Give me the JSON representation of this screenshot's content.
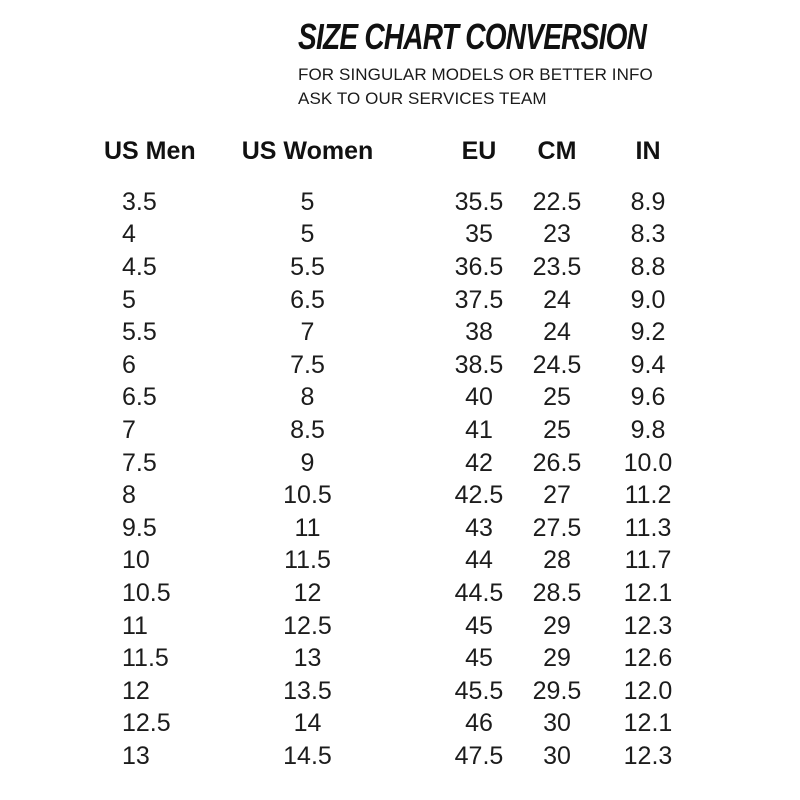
{
  "header": {
    "title": "SIZE CHART CONVERSION",
    "subtitle_line1": "FOR SINGULAR MODELS OR BETTER INFO",
    "subtitle_line2": "ASK TO OUR SERVICES TEAM"
  },
  "chart_data": {
    "type": "table",
    "title": "SIZE CHART CONVERSION",
    "columns": [
      "US Men",
      "US Women",
      "EU",
      "CM",
      "IN"
    ],
    "rows": [
      [
        "3.5",
        "5",
        "35.5",
        "22.5",
        "8.9"
      ],
      [
        "4",
        "5",
        "35",
        "23",
        "8.3"
      ],
      [
        "4.5",
        "5.5",
        "36.5",
        "23.5",
        "8.8"
      ],
      [
        "5",
        "6.5",
        "37.5",
        "24",
        "9.0"
      ],
      [
        "5.5",
        "7",
        "38",
        "24",
        "9.2"
      ],
      [
        "6",
        "7.5",
        "38.5",
        "24.5",
        "9.4"
      ],
      [
        "6.5",
        "8",
        "40",
        "25",
        "9.6"
      ],
      [
        "7",
        "8.5",
        "41",
        "25",
        "9.8"
      ],
      [
        "7.5",
        "9",
        "42",
        "26.5",
        "10.0"
      ],
      [
        "8",
        "10.5",
        "42.5",
        "27",
        "11.2"
      ],
      [
        "9.5",
        "11",
        "43",
        "27.5",
        "11.3"
      ],
      [
        "10",
        "11.5",
        "44",
        "28",
        "11.7"
      ],
      [
        "10.5",
        "12",
        "44.5",
        "28.5",
        "12.1"
      ],
      [
        "11",
        "12.5",
        "45",
        "29",
        "12.3"
      ],
      [
        "11.5",
        "13",
        "45",
        "29",
        "12.6"
      ],
      [
        "12",
        "13.5",
        "45.5",
        "29.5",
        "12.0"
      ],
      [
        "12.5",
        "14",
        "46",
        "30",
        "12.1"
      ],
      [
        "13",
        "14.5",
        "47.5",
        "30",
        "12.3"
      ]
    ]
  },
  "colors": {
    "background": "#ffffff",
    "text": "#161616"
  }
}
